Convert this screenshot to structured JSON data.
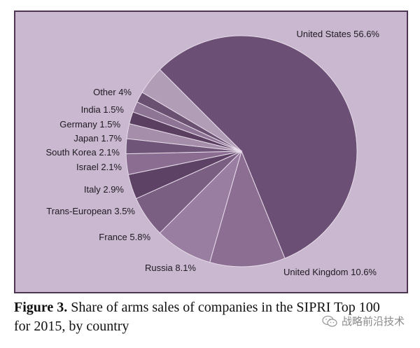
{
  "chart_data": {
    "type": "pie",
    "slices": [
      {
        "label": "United States",
        "value": 56.6,
        "display": "United States 56.6%",
        "color": "#6b4f74"
      },
      {
        "label": "United Kingdom",
        "value": 10.6,
        "display": "United Kingdom 10.6%",
        "color": "#8c6e93"
      },
      {
        "label": "Russia",
        "value": 8.1,
        "display": "Russia 8.1%",
        "color": "#9a7ea1"
      },
      {
        "label": "France",
        "value": 5.8,
        "display": "France 5.8%",
        "color": "#7b5f83"
      },
      {
        "label": "Trans-European",
        "value": 3.5,
        "display": "Trans-European 3.5%",
        "color": "#5d4265"
      },
      {
        "label": "Italy",
        "value": 2.9,
        "display": "Italy 2.9%",
        "color": "#8a6d91"
      },
      {
        "label": "Israel",
        "value": 2.1,
        "display": "Israel 2.1%",
        "color": "#6f5577"
      },
      {
        "label": "South Korea",
        "value": 2.1,
        "display": "South Korea 2.1%",
        "color": "#a58ea9"
      },
      {
        "label": "Japan",
        "value": 1.7,
        "display": "Japan 1.7%",
        "color": "#5a3f61"
      },
      {
        "label": "Germany",
        "value": 1.5,
        "display": "Germany 1.5%",
        "color": "#8e7595"
      },
      {
        "label": "India",
        "value": 1.5,
        "display": "India 1.5%",
        "color": "#6a5071"
      },
      {
        "label": "Other",
        "value": 4,
        "display": "Other 4%",
        "color": "#b29db6"
      }
    ],
    "background_color": "#c9b8cf",
    "border_color": "#4d3553"
  },
  "caption": {
    "prefix": "Figure 3.",
    "text": " Share of arms sales of companies in the SIPRI Top 100 for 2015, by country"
  },
  "watermark": {
    "text": "战略前沿技术",
    "icon": "wechat-icon"
  }
}
